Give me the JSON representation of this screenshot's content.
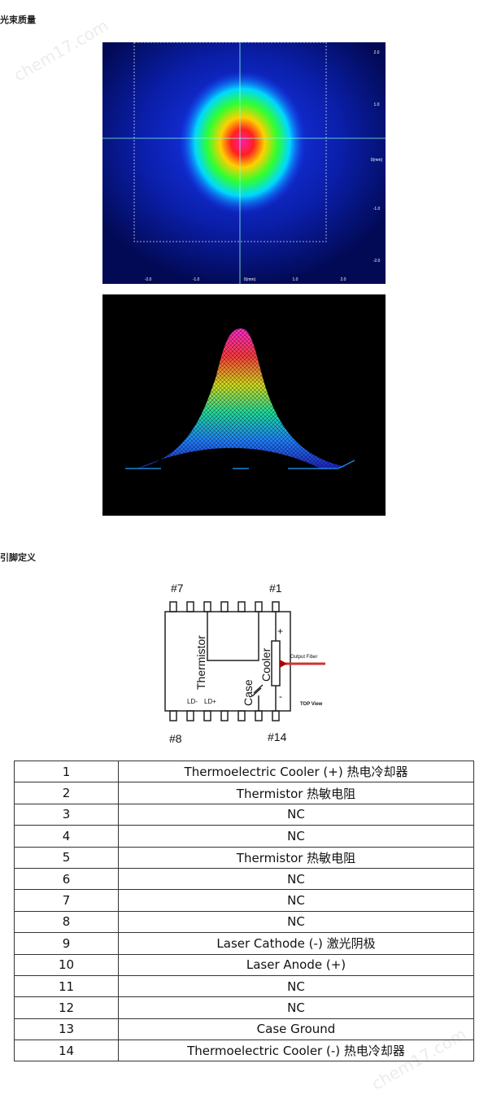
{
  "beam_quality": {
    "title": "光束质量",
    "y_axis_labels": [
      "2.0",
      "1.0",
      "0(mm)",
      "-1.0",
      "-2.0"
    ],
    "x_axis_labels": [
      "-2.0",
      "-1.0",
      "0(mm)",
      "1.0",
      "2.0"
    ]
  },
  "pin_definition": {
    "title": "引脚定义",
    "diagram": {
      "pin_7": "#7",
      "pin_1": "#1",
      "pin_8": "#8",
      "pin_14": "#14",
      "thermistor": "Thermistor",
      "cooler": "Cooler",
      "case": "Case",
      "ld_minus": "LD-",
      "ld_plus": "LD+",
      "plus": "+",
      "minus": "-",
      "output_fiber": "Output Fiber",
      "top_view": "TOP View"
    },
    "table": {
      "rows": [
        [
          "1",
          "Thermoelectric Cooler (+) 热电冷却器"
        ],
        [
          "2",
          "Thermistor 热敏电阻"
        ],
        [
          "3",
          "NC"
        ],
        [
          "4",
          "NC"
        ],
        [
          "5",
          "Thermistor 热敏电阻"
        ],
        [
          "6",
          "NC"
        ],
        [
          "7",
          "NC"
        ],
        [
          "8",
          "NC"
        ],
        [
          "9",
          "Laser Cathode (-) 激光阴极"
        ],
        [
          "10",
          "Laser Anode (+)"
        ],
        [
          "11",
          "NC"
        ],
        [
          "12",
          "NC"
        ],
        [
          "13",
          "Case Ground"
        ],
        [
          "14",
          "Thermoelectric Cooler (-) 热电冷却器"
        ]
      ]
    }
  },
  "watermark": "chem17.com"
}
